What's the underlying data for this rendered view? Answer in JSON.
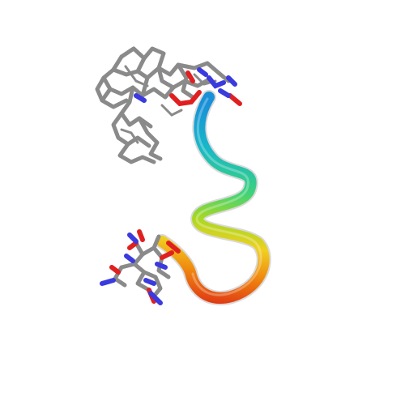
{
  "scene": {
    "background": "#ffffff",
    "colors": {
      "sticks_gray": "#8a8a8a",
      "atom_blue": "#3a3adf",
      "atom_red": "#e02020",
      "ribbon_start": "#1a90d8",
      "ribbon_cyan": "#17b8c8",
      "ribbon_green": "#3fd27a",
      "ribbon_lime": "#a8d823",
      "ribbon_yellow": "#f0d020",
      "ribbon_orange": "#f08a10",
      "ribbon_end": "#e03a12"
    }
  }
}
